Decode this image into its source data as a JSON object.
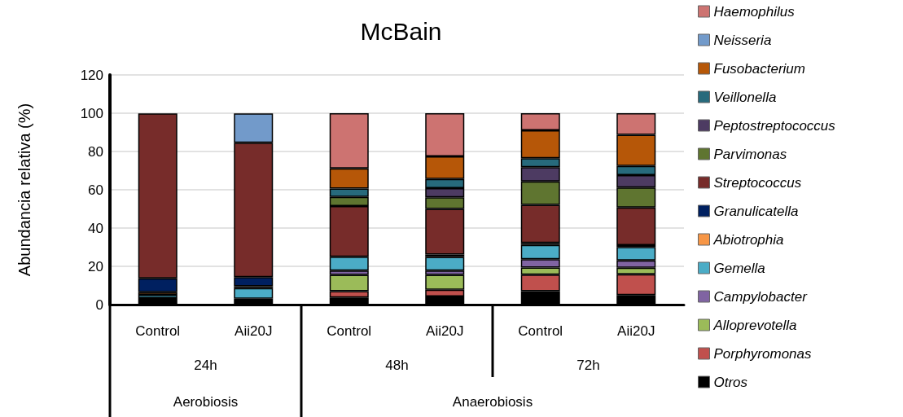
{
  "chart_data": {
    "type": "bar",
    "stacked": true,
    "title": "McBain",
    "ylabel": "Abundancia relativa (%)",
    "categories": [
      "Control",
      "Aii20J",
      "Control",
      "Aii20J",
      "Control",
      "Aii20J"
    ],
    "annotations": [
      "24h",
      "48h",
      "72h",
      "Aerobiosis",
      "Anaerobiosis"
    ],
    "ylim": [
      0,
      120
    ],
    "yticks": [
      0,
      20,
      40,
      60,
      80,
      100,
      120
    ],
    "grid": "y",
    "legend": "right",
    "series": [
      {
        "name": "Otros",
        "color": "#000000",
        "values": [
          3.4,
          3.1,
          3.7,
          4.3,
          7.0,
          5.0
        ]
      },
      {
        "name": "Porphyromonas",
        "color": "#c0504d",
        "values": [
          null,
          null,
          3.3,
          3.5,
          8.6,
          10.9
        ]
      },
      {
        "name": "Alloprevotella",
        "color": "#9bbb59",
        "values": [
          null,
          null,
          8.5,
          7.7,
          3.8,
          3.4
        ]
      },
      {
        "name": "Campylobacter",
        "color": "#8064a2",
        "values": [
          null,
          null,
          2.3,
          2.3,
          4.3,
          3.8
        ]
      },
      {
        "name": "Gemella",
        "color": "#4bacc6",
        "values": [
          1.7,
          5.5,
          7.2,
          7.1,
          7.5,
          7.0
        ]
      },
      {
        "name": "Abiotrophia",
        "color": "#f79646",
        "values": [
          1.4,
          1.0,
          null,
          null,
          null,
          null
        ]
      },
      {
        "name": "Granulicatella",
        "color": "#002060",
        "values": [
          7.2,
          4.8,
          null,
          1.3,
          1.0,
          1.0
        ]
      },
      {
        "name": "Streptococcus",
        "color": "#772c2a",
        "values": [
          86.2,
          70.2,
          26.5,
          23.8,
          19.9,
          19.6
        ]
      },
      {
        "name": "Parvimonas",
        "color": "#5f7530",
        "values": [
          null,
          null,
          4.8,
          6.1,
          12.3,
          10.5
        ]
      },
      {
        "name": "Peptostreptococcus",
        "color": "#4d3b62",
        "values": [
          null,
          null,
          null,
          4.8,
          7.4,
          6.5
        ]
      },
      {
        "name": "Veillonella",
        "color": "#276a7c",
        "values": [
          null,
          null,
          4.3,
          4.7,
          4.7,
          4.7
        ]
      },
      {
        "name": "Fusobacterium",
        "color": "#b65708",
        "values": [
          null,
          null,
          10.6,
          11.8,
          14.6,
          16.3
        ]
      },
      {
        "name": "Neisseria",
        "color": "#729aca",
        "values": [
          null,
          15.3,
          null,
          null,
          null,
          null
        ]
      },
      {
        "name": "Haemophilus",
        "color": "#cd7371",
        "values": [
          null,
          null,
          28.8,
          22.6,
          8.9,
          11.3
        ]
      }
    ]
  }
}
